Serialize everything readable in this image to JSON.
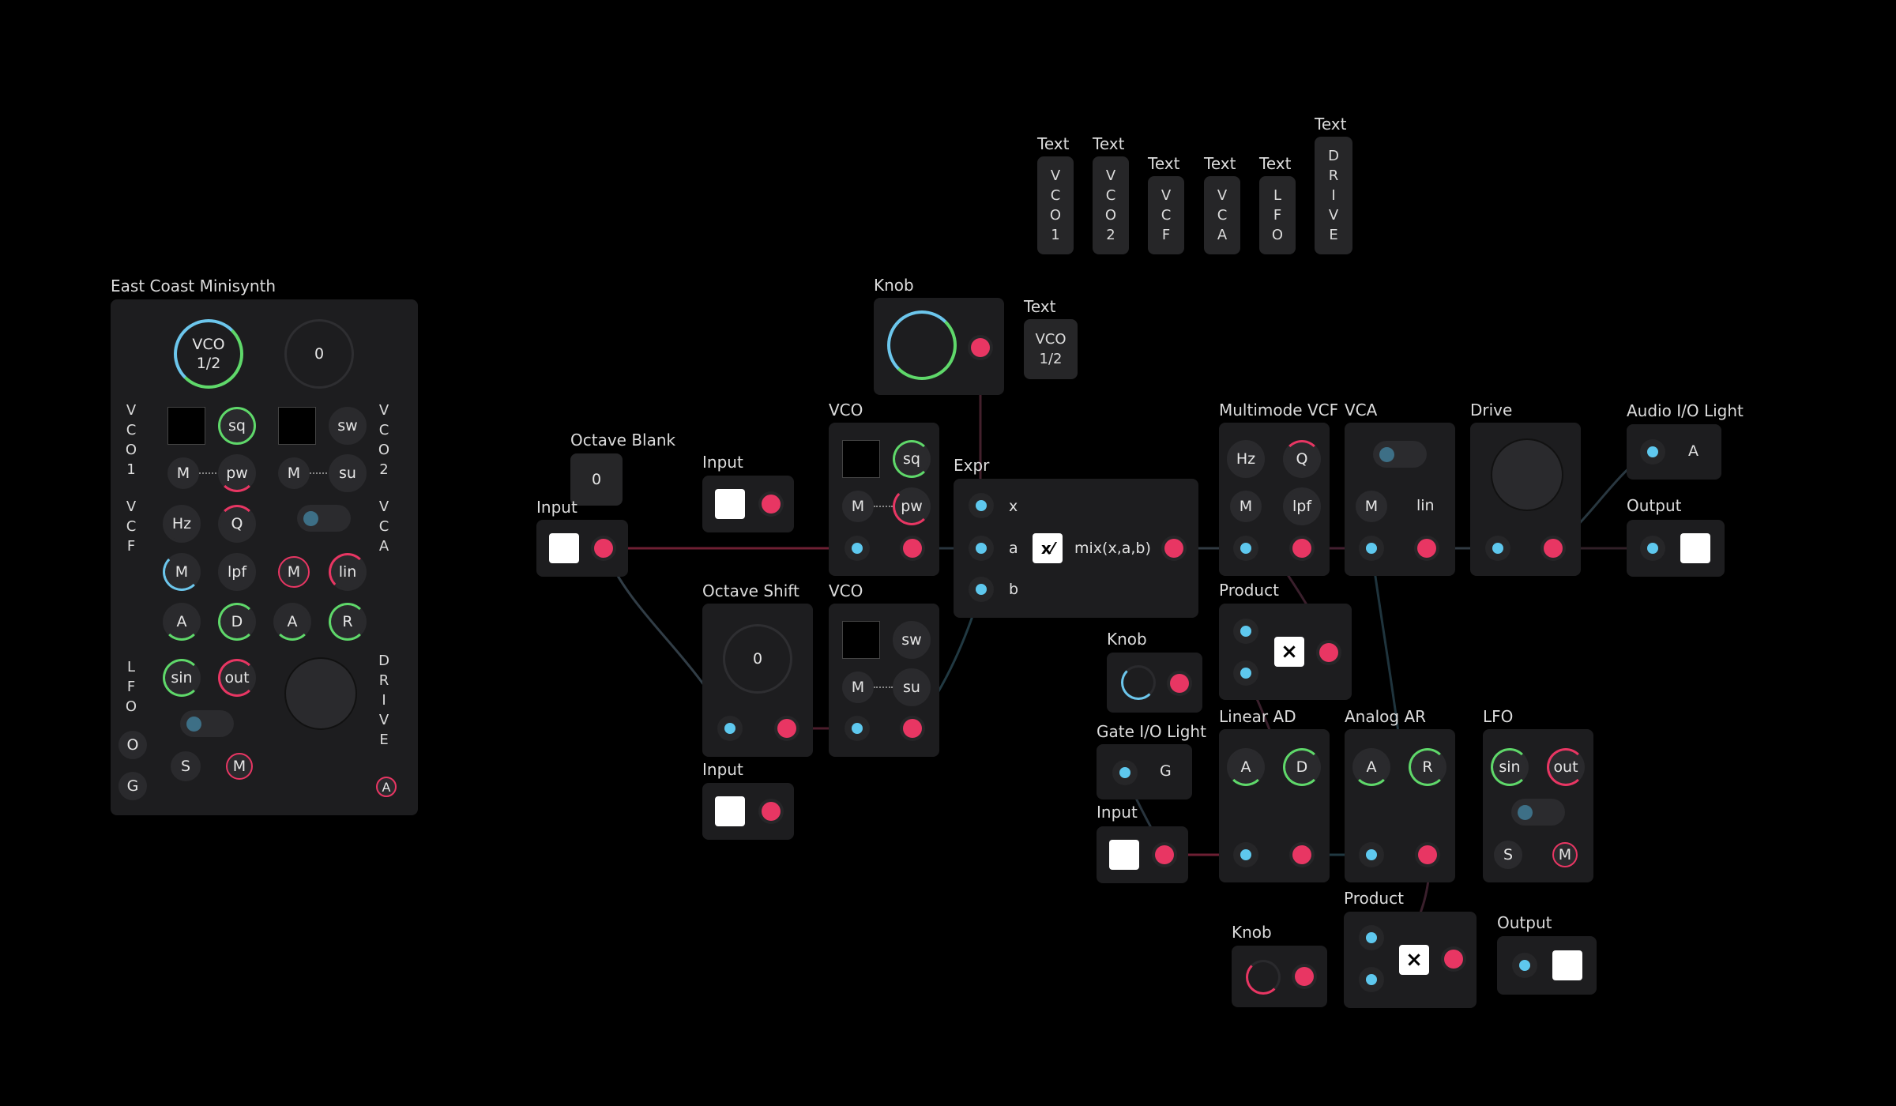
{
  "colors": {
    "background": "#000000",
    "module": "#1d1d1f",
    "input_port": "#5ec8ee",
    "output_port": "#e83663",
    "knob_green": "#5fd86a",
    "knob_blue": "#6cc6ec"
  },
  "text_titles": [
    "Text",
    "Text",
    "Text",
    "Text",
    "Text",
    "Text",
    "Text"
  ],
  "text_values": [
    "V\nC\nO\n1",
    "V\nC\nO\n2",
    "V\nC\nF",
    "V\nC\nA",
    "L\nF\nO",
    "D\nR\nI\nV\nE",
    "VCO\n1/2"
  ],
  "minisynth": {
    "title": "East Coast Minisynth",
    "vco_knob": "VCO\n1/2",
    "offset_knob": "0",
    "side_labels": {
      "vco1": "V\nC\nO\n1",
      "vco2": "V\nC\nO\n2",
      "vcf": "V\nC\nF",
      "vca": "V\nC\nA",
      "lfo": "L\nF\nO",
      "drive": "D\nR\nI\nV\nE"
    },
    "row1": [
      "sq",
      "sw"
    ],
    "row2": [
      "M",
      "pw",
      "M",
      "su"
    ],
    "row3": [
      "Hz",
      "Q"
    ],
    "row4": [
      "M",
      "lpf",
      "M",
      "lin"
    ],
    "row5": [
      "A",
      "D",
      "A",
      "R"
    ],
    "row6": [
      "sin",
      "out"
    ],
    "bottom": [
      "O",
      "S",
      "M",
      "G",
      "A"
    ]
  },
  "modules": {
    "knob_top": "Knob",
    "octave_blank": {
      "title": "Octave Blank",
      "value": "0"
    },
    "input1": "Input",
    "input2": "Input",
    "input3": "Input",
    "input4": "Input",
    "vco1": {
      "title": "VCO",
      "a": "sq",
      "b": "M",
      "c": "pw"
    },
    "vco2": {
      "title": "VCO",
      "a": "sw",
      "b": "M",
      "c": "su"
    },
    "octave_shift": {
      "title": "Octave Shift",
      "value": "0"
    },
    "expr": {
      "title": "Expr",
      "x": "x",
      "a": "a",
      "b": "b",
      "formula": "mix(x,a,b)"
    },
    "vcf": {
      "title": "Multimode VCF",
      "hz": "Hz",
      "q": "Q",
      "m": "M",
      "lpf": "lpf"
    },
    "vca": {
      "title": "VCA",
      "m": "M",
      "lin": "lin"
    },
    "drive": "Drive",
    "audio_light": {
      "title": "Audio I/O Light",
      "a": "A"
    },
    "output1": "Output",
    "product1": "Product",
    "knob_mid": "Knob",
    "gate_light": {
      "title": "Gate I/O Light",
      "g": "G"
    },
    "linear_ad": {
      "title": "Linear AD",
      "a": "A",
      "d": "D"
    },
    "analog_ar": {
      "title": "Analog AR",
      "a": "A",
      "r": "R"
    },
    "lfo": {
      "title": "LFO",
      "sin": "sin",
      "out": "out",
      "s": "S",
      "m": "M"
    },
    "knob_bottom": "Knob",
    "product2": "Product",
    "output2": "Output"
  }
}
